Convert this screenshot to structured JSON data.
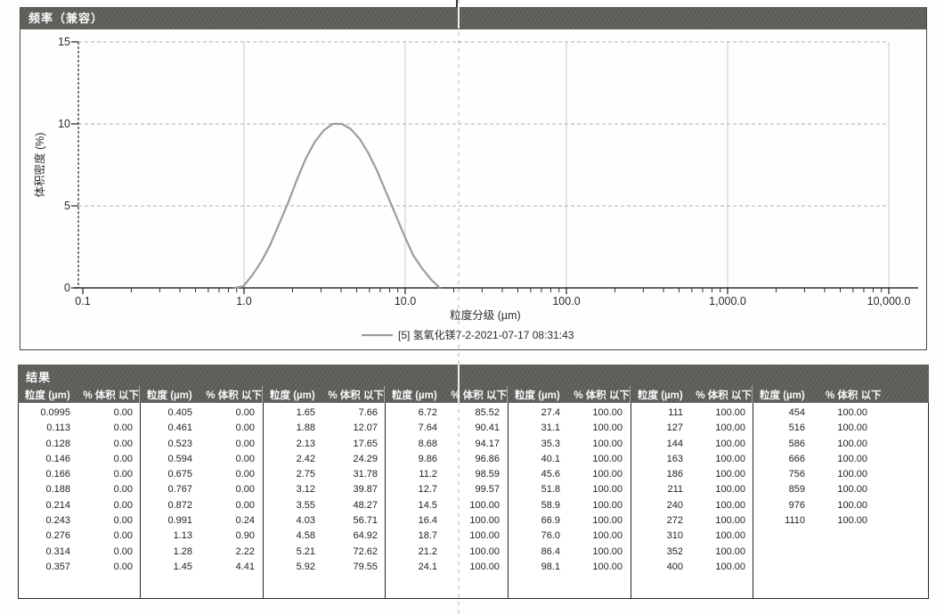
{
  "chart_panel": {
    "title": "频率（兼容）"
  },
  "chart_data": {
    "type": "line",
    "title": "频率（兼容）",
    "xlabel": "粒度分级 (µm)",
    "ylabel": "体积密度 (%)",
    "x_scale": "log",
    "xlim": [
      0.1,
      10000
    ],
    "ylim": [
      0,
      15
    ],
    "grid": true,
    "legend_position": "bottom",
    "legend": "[5] 氢氧化镁7-2-2021-07-17 08:31:43",
    "y_ticks": [
      0,
      5,
      10,
      15
    ],
    "y_tick_labels": [
      "0",
      "5",
      "10",
      "15"
    ],
    "x_tick_values": [
      0.1,
      1.0,
      10.0,
      100.0,
      1000.0,
      10000.0
    ],
    "x_tick_labels": [
      "0.1",
      "1.0",
      "10.0",
      "100.0",
      "1,000.0",
      "10,000.0"
    ],
    "series": [
      {
        "name": "[5] 氢氧化镁7-2-2021-07-17 08:31:43",
        "color": "#9c9c9c",
        "x": [
          0.872,
          0.991,
          1.13,
          1.28,
          1.45,
          1.65,
          1.88,
          2.13,
          2.42,
          2.75,
          3.12,
          3.55,
          4.03,
          4.58,
          5.21,
          5.92,
          6.72,
          7.64,
          8.68,
          9.86,
          11.2,
          12.7,
          14.5,
          16.4
        ],
        "y": [
          0.0,
          0.1,
          0.8,
          1.6,
          2.6,
          3.9,
          5.2,
          6.6,
          7.9,
          8.9,
          9.6,
          10.0,
          10.0,
          9.7,
          9.1,
          8.2,
          7.1,
          5.8,
          4.5,
          3.2,
          2.0,
          1.2,
          0.5,
          0.0
        ]
      }
    ]
  },
  "results_table": {
    "title": "结果",
    "header": {
      "size": "粒度 (µm)",
      "pct": "% 体积 以下"
    },
    "groups": [
      {
        "rows": [
          [
            "0.0995",
            "0.00"
          ],
          [
            "0.113",
            "0.00"
          ],
          [
            "0.128",
            "0.00"
          ],
          [
            "0.146",
            "0.00"
          ],
          [
            "0.166",
            "0.00"
          ],
          [
            "0.188",
            "0.00"
          ],
          [
            "0.214",
            "0.00"
          ],
          [
            "0.243",
            "0.00"
          ],
          [
            "0.276",
            "0.00"
          ],
          [
            "0.314",
            "0.00"
          ],
          [
            "0.357",
            "0.00"
          ]
        ]
      },
      {
        "rows": [
          [
            "0.405",
            "0.00"
          ],
          [
            "0.461",
            "0.00"
          ],
          [
            "0.523",
            "0.00"
          ],
          [
            "0.594",
            "0.00"
          ],
          [
            "0.675",
            "0.00"
          ],
          [
            "0.767",
            "0.00"
          ],
          [
            "0.872",
            "0.00"
          ],
          [
            "0.991",
            "0.24"
          ],
          [
            "1.13",
            "0.90"
          ],
          [
            "1.28",
            "2.22"
          ],
          [
            "1.45",
            "4.41"
          ]
        ]
      },
      {
        "rows": [
          [
            "1.65",
            "7.66"
          ],
          [
            "1.88",
            "12.07"
          ],
          [
            "2.13",
            "17.65"
          ],
          [
            "2.42",
            "24.29"
          ],
          [
            "2.75",
            "31.78"
          ],
          [
            "3.12",
            "39.87"
          ],
          [
            "3.55",
            "48.27"
          ],
          [
            "4.03",
            "56.71"
          ],
          [
            "4.58",
            "64.92"
          ],
          [
            "5.21",
            "72.62"
          ],
          [
            "5.92",
            "79.55"
          ]
        ]
      },
      {
        "rows": [
          [
            "6.72",
            "85.52"
          ],
          [
            "7.64",
            "90.41"
          ],
          [
            "8.68",
            "94.17"
          ],
          [
            "9.86",
            "96.86"
          ],
          [
            "11.2",
            "98.59"
          ],
          [
            "12.7",
            "99.57"
          ],
          [
            "14.5",
            "100.00"
          ],
          [
            "16.4",
            "100.00"
          ],
          [
            "18.7",
            "100.00"
          ],
          [
            "21.2",
            "100.00"
          ],
          [
            "24.1",
            "100.00"
          ]
        ]
      },
      {
        "rows": [
          [
            "27.4",
            "100.00"
          ],
          [
            "31.1",
            "100.00"
          ],
          [
            "35.3",
            "100.00"
          ],
          [
            "40.1",
            "100.00"
          ],
          [
            "45.6",
            "100.00"
          ],
          [
            "51.8",
            "100.00"
          ],
          [
            "58.9",
            "100.00"
          ],
          [
            "66.9",
            "100.00"
          ],
          [
            "76.0",
            "100.00"
          ],
          [
            "86.4",
            "100.00"
          ],
          [
            "98.1",
            "100.00"
          ]
        ]
      },
      {
        "rows": [
          [
            "111",
            "100.00"
          ],
          [
            "127",
            "100.00"
          ],
          [
            "144",
            "100.00"
          ],
          [
            "163",
            "100.00"
          ],
          [
            "186",
            "100.00"
          ],
          [
            "211",
            "100.00"
          ],
          [
            "240",
            "100.00"
          ],
          [
            "272",
            "100.00"
          ],
          [
            "310",
            "100.00"
          ],
          [
            "352",
            "100.00"
          ],
          [
            "400",
            "100.00"
          ]
        ]
      },
      {
        "rows": [
          [
            "454",
            "100.00"
          ],
          [
            "516",
            "100.00"
          ],
          [
            "586",
            "100.00"
          ],
          [
            "666",
            "100.00"
          ],
          [
            "756",
            "100.00"
          ],
          [
            "859",
            "100.00"
          ],
          [
            "976",
            "100.00"
          ],
          [
            "1110",
            "100.00"
          ]
        ]
      }
    ]
  },
  "colors": {
    "bar_background": "#5f5d59",
    "bar_text": "#fafafa",
    "curve": "#9c9c9c",
    "gridline": "#adadad",
    "decade_gridline": "#c9c9c9",
    "axis": "#2f2f2f",
    "table_border": "#262626"
  }
}
